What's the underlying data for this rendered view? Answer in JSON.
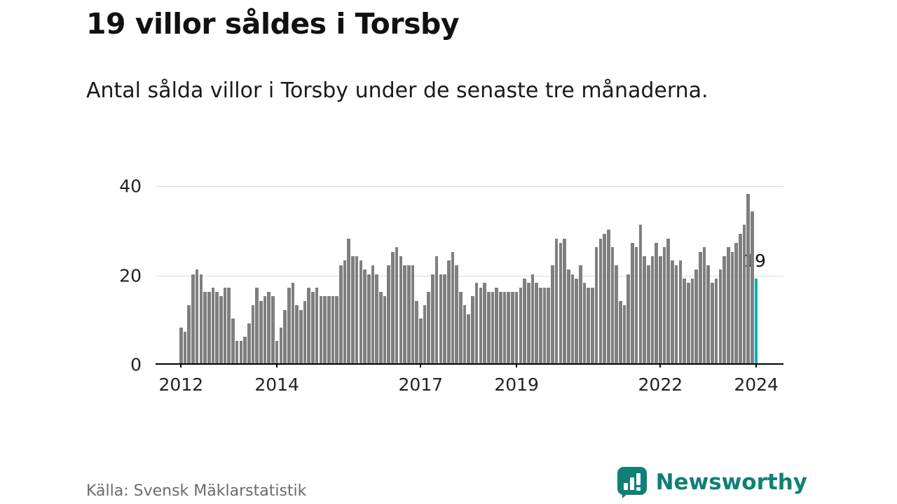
{
  "header": {
    "title": "19 villor såldes i Torsby",
    "subtitle": "Antal sålda villor i Torsby under de senaste tre månaderna."
  },
  "footer": {
    "source": "Källa: Svensk Mäklarstatistik"
  },
  "brand": {
    "name": "Newsworthy",
    "color": "#0f8076",
    "logo_icon": "bar-chart-exclamation-icon"
  },
  "chart_data": {
    "type": "bar",
    "title": "19 villor såldes i Torsby",
    "subtitle": "Antal sålda villor i Torsby under de senaste tre månaderna.",
    "frequency": "monthly",
    "x_start": "2012-01",
    "x_end": "2024-01",
    "values": [
      8,
      7,
      13,
      20,
      21,
      20,
      16,
      16,
      17,
      16,
      15,
      17,
      17,
      10,
      5,
      5,
      6,
      9,
      13,
      17,
      14,
      15,
      16,
      15,
      5,
      8,
      12,
      17,
      18,
      13,
      12,
      14,
      17,
      16,
      17,
      15,
      15,
      15,
      15,
      15,
      22,
      23,
      28,
      24,
      24,
      23,
      21,
      20,
      22,
      20,
      16,
      15,
      22,
      25,
      26,
      24,
      22,
      22,
      22,
      14,
      10,
      13,
      16,
      20,
      24,
      20,
      20,
      23,
      25,
      22,
      16,
      13,
      11,
      15,
      18,
      17,
      18,
      16,
      16,
      17,
      16,
      16,
      16,
      16,
      16,
      17,
      19,
      18,
      20,
      18,
      17,
      17,
      17,
      22,
      28,
      27,
      28,
      21,
      20,
      19,
      22,
      18,
      17,
      17,
      26,
      28,
      29,
      30,
      26,
      22,
      14,
      13,
      20,
      27,
      26,
      31,
      24,
      22,
      24,
      27,
      24,
      26,
      28,
      23,
      22,
      23,
      19,
      18,
      19,
      21,
      25,
      26,
      22,
      18,
      19,
      21,
      24,
      26,
      25,
      27,
      29,
      31,
      38,
      34,
      19
    ],
    "last_value": 19,
    "highlight_last": true,
    "bar_color": "#7f7f7f",
    "highlight_color": "#00b2b4",
    "ylim": [
      0,
      40
    ],
    "yticks": [
      "0",
      "20",
      "40"
    ],
    "xticks": [
      {
        "label": "2012",
        "index": 0
      },
      {
        "label": "2014",
        "index": 24
      },
      {
        "label": "2017",
        "index": 60
      },
      {
        "label": "2019",
        "index": 84
      },
      {
        "label": "2022",
        "index": 120
      },
      {
        "label": "2024",
        "index": 144
      }
    ],
    "annotation": {
      "text": "19",
      "index": 144
    },
    "grid": "horizontal",
    "legend": "none"
  }
}
